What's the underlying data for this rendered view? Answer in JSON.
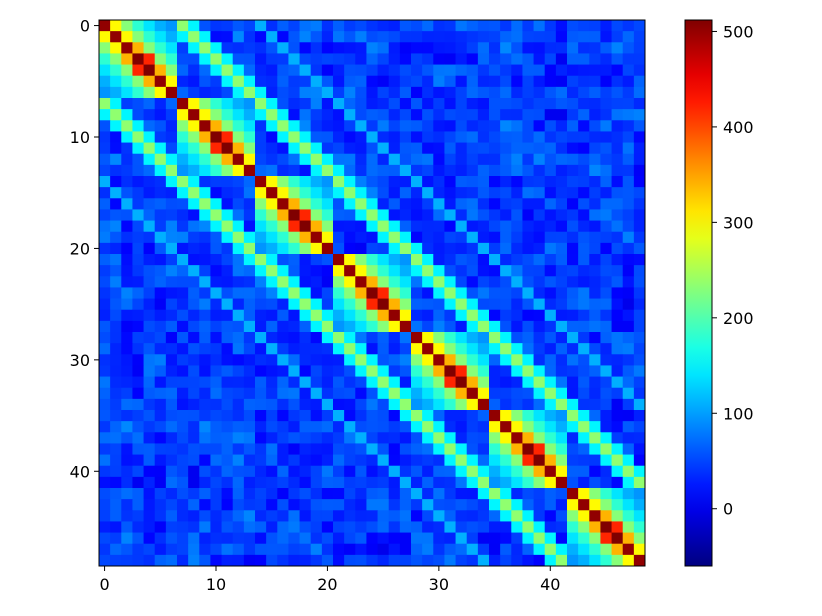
{
  "chart_data": {
    "type": "heatmap",
    "title": "",
    "xlabel": "",
    "ylabel": "",
    "size": 49,
    "block_size": 7,
    "colormap": "jet",
    "color_range": [
      -60,
      512
    ],
    "diagonal_value": 512,
    "near_diagonal_peak_value": 420,
    "same_block_offset_values": [
      {
        "offset": 1,
        "value": 300
      },
      {
        "offset": 2,
        "value": 230
      },
      {
        "offset": 3,
        "value": 180
      },
      {
        "offset": 4,
        "value": 140
      },
      {
        "offset": 5,
        "value": 110
      },
      {
        "offset": 6,
        "value": 95
      }
    ],
    "adjacent_block_band_value": 235,
    "background_value_range": [
      0,
      90
    ],
    "x_ticks": [
      0,
      10,
      20,
      30,
      40
    ],
    "y_ticks": [
      0,
      10,
      20,
      30,
      40
    ],
    "x_tick_labels": [
      "0",
      "10",
      "20",
      "30",
      "40"
    ],
    "y_tick_labels": [
      "0",
      "10",
      "20",
      "30",
      "40"
    ],
    "colorbar_ticks": [
      0,
      100,
      200,
      300,
      400,
      500
    ],
    "colorbar_tick_labels": [
      "0",
      "100",
      "200",
      "300",
      "400",
      "500"
    ]
  }
}
